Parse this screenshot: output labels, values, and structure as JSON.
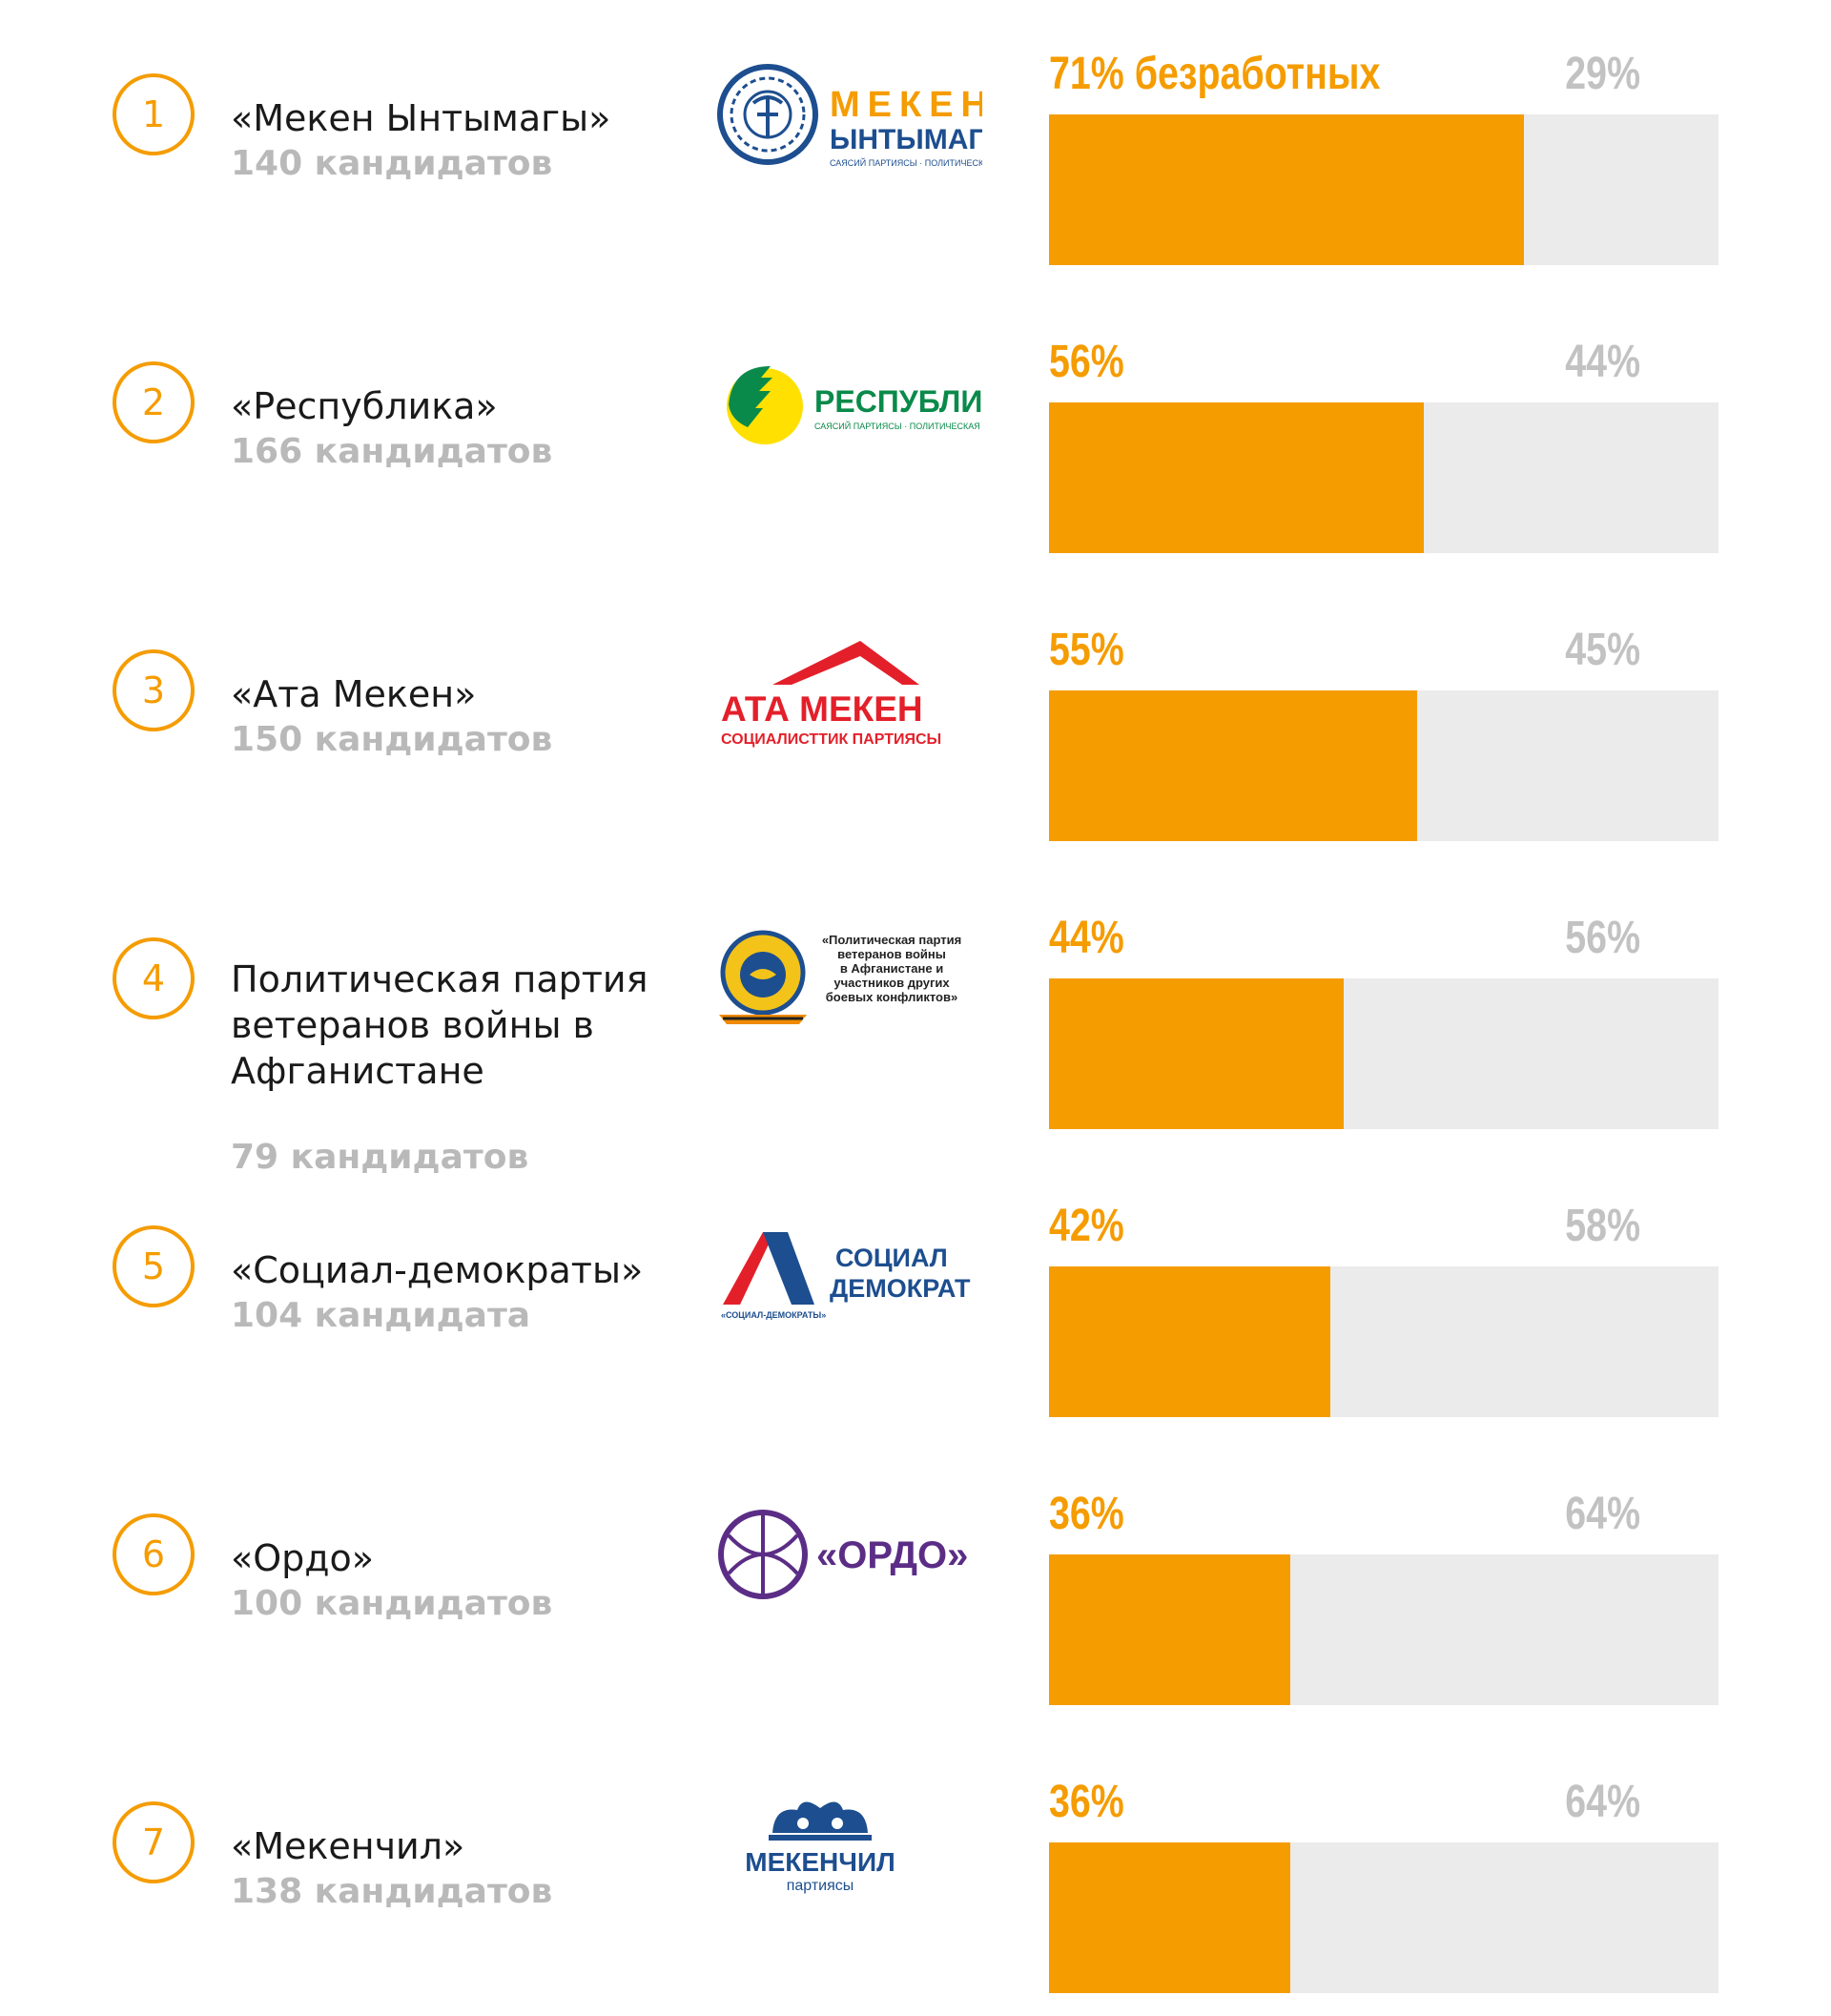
{
  "chart_data": {
    "type": "bar",
    "orientation": "horizontal-stacked",
    "value_suffix": "%",
    "first_label_suffix": " безработных",
    "rows": [
      {
        "rank": "1",
        "name": "«Мекен Ынтымагы»",
        "candidates": "140 кандидатов",
        "value": 71,
        "rest": 29,
        "logo": {
          "line1": "МЕКЕН",
          "line2": "ЫНТЫМАГЫ",
          "sub": "САЯСИЙ ПАРТИЯСЫ · ПОЛИТИЧЕСКАЯ ПАРТИЯ"
        }
      },
      {
        "rank": "2",
        "name": "«Республика»",
        "candidates": "166 кандидатов",
        "value": 56,
        "rest": 44,
        "logo": {
          "line1": "РЕСПУБЛИКА",
          "sub": "САЯСИЙ ПАРТИЯСЫ · ПОЛИТИЧЕСКАЯ ПАРТИЯ"
        }
      },
      {
        "rank": "3",
        "name": "«Ата Мекен»",
        "candidates": "150 кандидатов",
        "value": 55,
        "rest": 45,
        "logo": {
          "line1": "АТА МЕКЕН",
          "sub": "СОЦИАЛИСТТИК ПАРТИЯСЫ"
        }
      },
      {
        "rank": "4",
        "name": "Политическая партия ветеранов войны в Афганистане",
        "candidates": "79 кандидатов",
        "value": 44,
        "rest": 56,
        "logo": {
          "lines": [
            "«Политическая партия",
            "ветеранов войны",
            "в Афганистане и",
            "участников других",
            "боевых конфликтов»"
          ]
        }
      },
      {
        "rank": "5",
        "name": "«Социал-демократы»",
        "candidates": "104 кандидата",
        "value": 42,
        "rest": 58,
        "logo": {
          "line1": "СОЦИАЛ",
          "line2": "ДЕМОКРАТ",
          "sub": "«СОЦИАЛ-ДЕМОКРАТЫ»"
        }
      },
      {
        "rank": "6",
        "name": "«Ордо»",
        "candidates": "100 кандидатов",
        "value": 36,
        "rest": 64,
        "logo": {
          "line1": "«ОРДО»"
        }
      },
      {
        "rank": "7",
        "name": "«Мекенчил»",
        "candidates": "138 кандидатов",
        "value": 36,
        "rest": 64,
        "logo": {
          "line1": "МЕКЕНЧИЛ",
          "sub": "партиясы"
        }
      }
    ],
    "colors": {
      "value": "#f59c00",
      "rest": "#ebebeb",
      "rest_label": "#c2c2c2",
      "candidates_label": "#b9b9b9"
    }
  }
}
